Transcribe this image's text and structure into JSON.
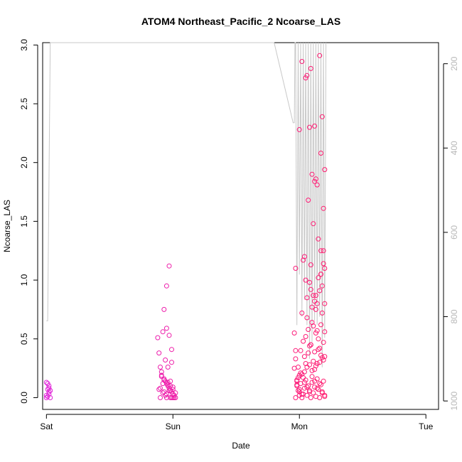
{
  "chart_data": {
    "type": "scatter",
    "title": "ATOM4 Northeast_Pacific_2 Ncoarse_LAS",
    "xlabel": "Date",
    "ylabel": "Ncoarse_LAS",
    "x_ticks": [
      "Sat",
      "Sun",
      "Mon",
      "Tue"
    ],
    "xlim": [
      -0.03,
      3.1
    ],
    "ylim": [
      -0.1,
      3.02
    ],
    "y_ticks": [
      "0.0",
      "0.5",
      "1.0",
      "1.5",
      "2.0",
      "2.5",
      "3.0"
    ],
    "y2_ticks": [
      "200",
      "400",
      "600",
      "800",
      "1000"
    ],
    "y2_range": [
      1020,
      150
    ],
    "grid": false,
    "colors": {
      "points_start": "#e020d8",
      "points_end": "#ff1a6e",
      "altitude_line": "#c8c8c8",
      "axis": "#000000",
      "y2_ticks": "#b8b8b8"
    },
    "series": [
      {
        "role": "points",
        "x": [
          0.0,
          0.01,
          0.02,
          0.01,
          0.02,
          0.0,
          0.03,
          0.01,
          0.02,
          0.02,
          0.0,
          0.03,
          0.88,
          0.89,
          0.9,
          0.91,
          0.92,
          0.9,
          0.93,
          0.94,
          0.95,
          0.93,
          0.96,
          0.97,
          0.95,
          0.98,
          0.99,
          1.0,
          1.01,
          1.02,
          0.92,
          0.95,
          0.97,
          0.99,
          0.94,
          0.96,
          0.91,
          0.93,
          0.98,
          1.0,
          0.89,
          0.92,
          0.95,
          0.97,
          0.99,
          1.01,
          0.9,
          0.94,
          0.96,
          0.98,
          1.0,
          0.93,
          0.95,
          0.97,
          0.99,
          0.91,
          0.96,
          0.98,
          1.0,
          1.02,
          1.96,
          1.97,
          1.98,
          1.99,
          2.0,
          1.97,
          1.98,
          1.99,
          2.0,
          2.01,
          2.02,
          2.03,
          2.04,
          2.05,
          2.06,
          2.07,
          2.08,
          2.09,
          2.1,
          2.11,
          2.12,
          2.13,
          2.14,
          2.15,
          2.16,
          2.17,
          2.18,
          2.19,
          2.2,
          1.97,
          1.99,
          2.01,
          2.03,
          2.05,
          2.07,
          2.09,
          2.11,
          2.13,
          2.15,
          2.17,
          2.19,
          1.98,
          2.0,
          2.02,
          2.04,
          2.06,
          2.08,
          2.1,
          2.12,
          2.14,
          2.16,
          2.18,
          2.2,
          1.96,
          2.0,
          2.04,
          2.08,
          2.12,
          2.16,
          2.2,
          1.98,
          2.02,
          2.06,
          2.1,
          2.14,
          2.18,
          2.01,
          2.03,
          2.05,
          2.07,
          2.09,
          2.11,
          2.13,
          2.15,
          2.17,
          2.19,
          2.04,
          2.08,
          2.12,
          2.16,
          2.2,
          2.06,
          2.1,
          2.14,
          2.18,
          2.02,
          2.06,
          2.1,
          2.14,
          2.18,
          2.05,
          2.09,
          2.13,
          2.17,
          2.08,
          2.12,
          2.16,
          2.2,
          1.97,
          2.03,
          2.09,
          2.15,
          2.19,
          2.04,
          2.11,
          2.17,
          2.07,
          2.13,
          2.19,
          2.0,
          2.05,
          2.12,
          2.17,
          2.2,
          2.02,
          2.08,
          2.14,
          2.1,
          2.18,
          2.06,
          2.16,
          2.12,
          2.19,
          2.09,
          2.15,
          2.2,
          2.11,
          2.13,
          2.17
        ],
        "y": [
          0.13,
          0.12,
          0.08,
          0.07,
          0.05,
          0.0,
          0.0,
          0.01,
          0.03,
          0.1,
          0.02,
          0.06,
          0.51,
          0.38,
          0.26,
          0.19,
          0.12,
          0.08,
          0.05,
          0.02,
          0.0,
          0.15,
          0.1,
          0.06,
          0.03,
          0.0,
          0.0,
          0.0,
          0.0,
          0.0,
          0.56,
          0.59,
          0.53,
          0.41,
          0.32,
          0.26,
          0.22,
          0.16,
          0.14,
          0.09,
          0.07,
          0.04,
          0.12,
          0.08,
          0.05,
          0.02,
          0.0,
          0.14,
          0.11,
          0.06,
          0.03,
          0.75,
          0.95,
          1.12,
          0.3,
          0.18,
          0.13,
          0.1,
          0.07,
          0.04,
          0.55,
          0.4,
          0.14,
          0.06,
          0.02,
          0.0,
          0.1,
          0.17,
          0.05,
          0.12,
          0.0,
          0.03,
          0.08,
          0.15,
          0.02,
          0.1,
          0.06,
          0.0,
          0.13,
          0.04,
          0.09,
          0.01,
          0.16,
          0.07,
          0.0,
          0.11,
          0.05,
          0.14,
          0.02,
          0.33,
          0.26,
          0.21,
          0.17,
          0.29,
          0.38,
          0.45,
          0.31,
          0.27,
          0.41,
          0.36,
          0.32,
          0.11,
          0.07,
          0.03,
          0.13,
          0.09,
          0.05,
          0.18,
          0.14,
          0.08,
          0.12,
          0.04,
          0.01,
          0.25,
          0.19,
          0.22,
          0.28,
          0.24,
          0.3,
          0.35,
          0.15,
          0.2,
          0.26,
          0.23,
          0.29,
          0.34,
          0.4,
          0.48,
          0.52,
          0.58,
          0.45,
          0.61,
          0.55,
          0.5,
          0.62,
          0.47,
          0.35,
          0.44,
          0.39,
          0.42,
          0.56,
          0.68,
          0.64,
          0.57,
          0.72,
          0.72,
          0.85,
          0.77,
          0.8,
          0.95,
          1.0,
          0.92,
          0.87,
          1.05,
          0.98,
          0.82,
          0.91,
          1.1,
          1.1,
          1.17,
          1.13,
          1.35,
          1.25,
          1.2,
          1.48,
          1.25,
          1.68,
          1.86,
          1.61,
          2.28,
          2.72,
          2.31,
          2.08,
          1.94,
          2.86,
          2.3,
          1.81,
          1.9,
          2.39,
          2.74,
          2.91,
          1.84,
          1.14,
          2.8,
          1.02,
          0.8,
          0.87,
          0.75,
          1.05
        ],
        "marker": "open-circle"
      },
      {
        "role": "altitude",
        "axis": "right",
        "x": [
          0.0,
          0.005,
          0.01,
          0.03,
          0.05,
          0.06,
          0.07,
          0.1,
          0.2,
          0.4,
          0.6,
          0.8,
          0.86,
          0.87,
          0.88,
          0.89,
          0.895,
          0.9,
          0.905,
          0.91,
          0.915,
          0.92,
          0.93,
          0.94,
          0.95,
          0.96,
          0.97,
          0.98,
          0.99,
          1.0,
          1.01,
          1.05,
          1.2,
          1.5,
          1.8,
          1.95,
          1.96,
          1.965,
          1.97,
          1.98,
          1.99,
          2.0,
          2.01,
          2.02,
          2.03,
          2.04,
          2.05,
          2.06,
          2.07,
          2.08,
          2.09,
          2.1,
          2.11,
          2.12,
          2.13,
          2.14,
          2.15,
          2.16,
          2.17,
          2.18,
          2.19,
          2.2,
          2.21
        ],
        "y": [
          810,
          810,
          810,
          150,
          150,
          150,
          150,
          150,
          150,
          150,
          150,
          150,
          150,
          150,
          150,
          150,
          150,
          150,
          150,
          150,
          150,
          150,
          150,
          150,
          150,
          150,
          150,
          150,
          150,
          150,
          150,
          150,
          150,
          150,
          150,
          340,
          340,
          150,
          150,
          820,
          150,
          700,
          150,
          800,
          150,
          760,
          150,
          820,
          150,
          900,
          150,
          860,
          150,
          810,
          150,
          820,
          150,
          800,
          150,
          920,
          150,
          850,
          150
        ]
      }
    ]
  }
}
